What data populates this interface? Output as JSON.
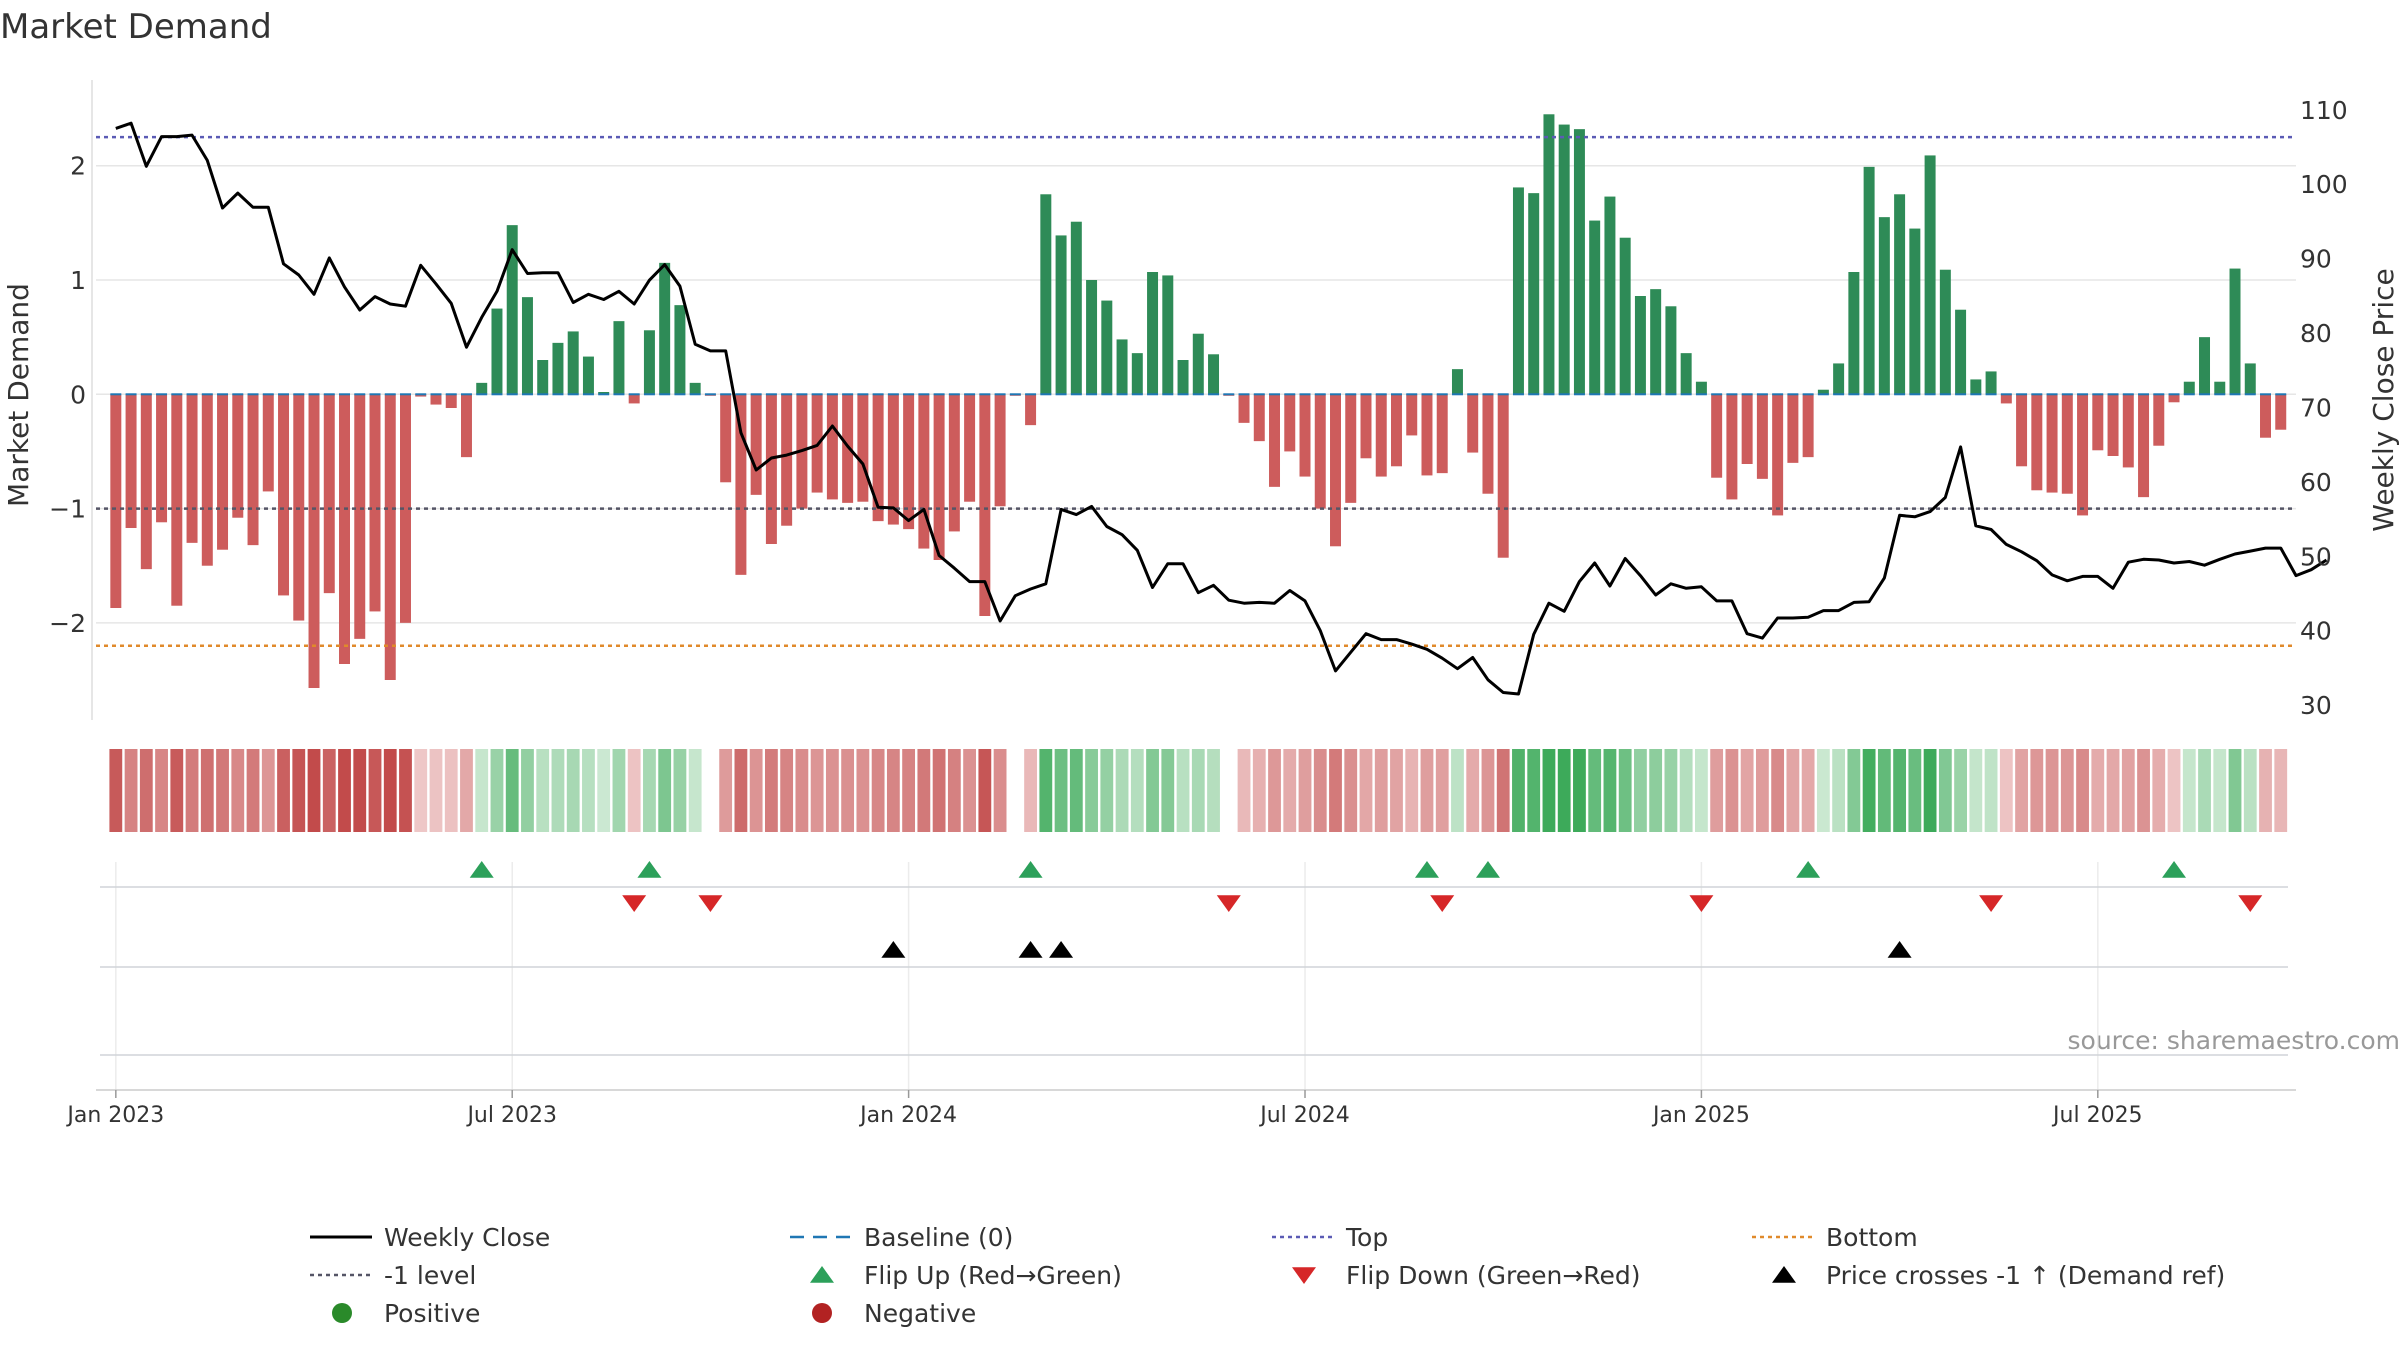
{
  "chart_data": {
    "type": "bar",
    "title": "Market Demand",
    "ylabel": "Market Demand",
    "y2label": "Weekly Close Price",
    "source": "source: sharemaestro.com",
    "ylim": [
      -2.85,
      2.75
    ],
    "y2lim": [
      28,
      114
    ],
    "yticks": [
      2,
      1,
      0,
      -1,
      -2
    ],
    "yticklabels": [
      "2",
      "1",
      "0",
      "−1",
      "−2"
    ],
    "y2ticks": [
      110,
      100,
      90,
      80,
      70,
      60,
      50,
      40,
      30
    ],
    "y2ticklabels": [
      "110",
      "100",
      "90",
      "80",
      "70",
      "60",
      "50",
      "40",
      "30"
    ],
    "xlim": [
      -1.3,
      143
    ],
    "xticks": [
      0,
      26,
      52,
      78,
      104,
      130
    ],
    "xticklabels": [
      "Jan 2023",
      "Jul 2023",
      "Jan 2024",
      "Jul 2024",
      "Jan 2025",
      "Jul 2025"
    ],
    "reference_lines": {
      "top": 2.25,
      "bottom": -2.2,
      "minus_one": -1,
      "baseline": 0
    },
    "demand": [
      -1.87,
      -1.17,
      -1.53,
      -1.12,
      -1.85,
      -1.3,
      -1.5,
      -1.36,
      -1.08,
      -1.32,
      -0.85,
      -1.76,
      -1.98,
      -2.57,
      -1.74,
      -2.36,
      -2.14,
      -1.9,
      -2.5,
      -2.0,
      -0.02,
      -0.09,
      -0.12,
      -0.55,
      0.1,
      0.75,
      1.48,
      0.85,
      0.3,
      0.45,
      0.55,
      0.33,
      0.02,
      0.64,
      -0.08,
      0.56,
      1.15,
      0.78,
      0.1,
      -0.01,
      -0.77,
      -1.58,
      -0.88,
      -1.31,
      -1.15,
      -1.0,
      -0.86,
      -0.92,
      -0.95,
      -0.94,
      -1.11,
      -1.14,
      -1.18,
      -1.35,
      -1.45,
      -1.2,
      -0.94,
      -1.94,
      -0.98,
      -0.01,
      -0.27,
      1.75,
      1.39,
      1.51,
      1.0,
      0.82,
      0.48,
      0.36,
      1.07,
      1.04,
      0.3,
      0.53,
      0.35,
      -0.01,
      -0.25,
      -0.41,
      -0.81,
      -0.5,
      -0.72,
      -1.0,
      -1.33,
      -0.95,
      -0.56,
      -0.72,
      -0.63,
      -0.36,
      -0.71,
      -0.69,
      0.22,
      -0.51,
      -0.87,
      -1.43,
      1.81,
      1.76,
      2.45,
      2.36,
      2.32,
      1.52,
      1.73,
      1.37,
      0.86,
      0.92,
      0.77,
      0.36,
      0.11,
      -0.73,
      -0.92,
      -0.61,
      -0.74,
      -1.06,
      -0.6,
      -0.55,
      0.04,
      0.27,
      1.07,
      1.99,
      1.55,
      1.75,
      1.45,
      2.09,
      1.09,
      0.74,
      0.13,
      0.2,
      -0.08,
      -0.63,
      -0.84,
      -0.86,
      -0.87,
      -1.06,
      -0.49,
      -0.54,
      -0.64,
      -0.9,
      -0.45,
      -0.07,
      0.11,
      0.5,
      0.11,
      1.1,
      0.27,
      -0.38,
      -0.31
    ],
    "price": [
      107.5,
      108.2,
      102.4,
      106.4,
      106.4,
      106.6,
      103.2,
      96.8,
      98.8,
      96.9,
      96.9,
      89.3,
      87.8,
      85.2,
      90.1,
      86.2,
      83.1,
      84.9,
      83.9,
      83.6,
      89.1,
      86.6,
      84.0,
      78.1,
      82.1,
      85.6,
      91.2,
      88.0,
      88.1,
      88.1,
      84.1,
      85.2,
      84.5,
      85.6,
      83.9,
      87.1,
      89.2,
      86.3,
      78.5,
      77.6,
      77.6,
      66.6,
      61.6,
      63.2,
      63.6,
      64.2,
      64.9,
      67.5,
      64.8,
      62.4,
      56.6,
      56.5,
      54.8,
      56.3,
      50.1,
      48.4,
      46.6,
      46.6,
      41.3,
      44.7,
      45.6,
      46.3,
      56.3,
      55.6,
      56.7,
      54.0,
      52.9,
      50.8,
      45.8,
      49.0,
      49.0,
      45.1,
      46.1,
      44.1,
      43.7,
      43.8,
      43.7,
      45.4,
      44.0,
      40.0,
      34.6,
      37.1,
      39.6,
      38.8,
      38.8,
      38.2,
      37.5,
      36.3,
      34.9,
      36.4,
      33.4,
      31.7,
      31.5,
      39.5,
      43.7,
      42.6,
      46.6,
      49.1,
      46.0,
      49.7,
      47.4,
      44.8,
      46.3,
      45.7,
      45.9,
      44.0,
      44.0,
      39.6,
      39.0,
      41.7,
      41.7,
      41.8,
      42.7,
      42.7,
      43.8,
      43.9,
      47.1,
      55.5,
      55.3,
      56.0,
      57.9,
      64.7,
      54.1,
      53.6,
      51.6,
      50.6,
      49.4,
      47.5,
      46.7,
      47.3,
      47.3,
      45.7,
      49.2,
      49.6,
      49.5,
      49.1,
      49.3,
      48.8,
      49.6,
      50.3,
      50.7,
      51.1,
      51.1,
      47.4,
      48.2,
      49.5
    ],
    "flip_up": [
      24,
      35,
      60,
      86,
      90,
      111,
      135
    ],
    "flip_down": [
      34,
      39,
      73,
      87,
      104,
      123,
      140
    ],
    "price_cross_up": [
      51,
      60,
      62,
      117
    ],
    "legend": [
      {
        "label": "Weekly Close",
        "marker": "line-solid",
        "color": "#000000"
      },
      {
        "label": "Baseline (0)",
        "marker": "line-dashed",
        "color": "#1f77b4"
      },
      {
        "label": "Top",
        "marker": "line-dotted",
        "color": "#5b5bb5"
      },
      {
        "label": "Bottom",
        "marker": "line-dotted",
        "color": "#e08a2b"
      },
      {
        "label": "-1 level",
        "marker": "line-dotted",
        "color": "#555566"
      },
      {
        "label": "Flip Up (Red→Green)",
        "marker": "triangle-up",
        "color": "#2ca05a"
      },
      {
        "label": "Flip Down (Green→Red)",
        "marker": "triangle-down",
        "color": "#d62728"
      },
      {
        "label": "Price crosses -1 ↑ (Demand ref)",
        "marker": "triangle-up",
        "color": "#000000"
      },
      {
        "label": "Positive",
        "marker": "circle",
        "color": "#2a8a2a"
      },
      {
        "label": "Negative",
        "marker": "circle",
        "color": "#b22222"
      }
    ],
    "colors": {
      "positive_bar": "#2e8b57",
      "negative_bar": "#cd5c5c",
      "price_line": "#000000",
      "grid": "#e6e6e6",
      "text": "#333333",
      "source": "#999999"
    }
  }
}
